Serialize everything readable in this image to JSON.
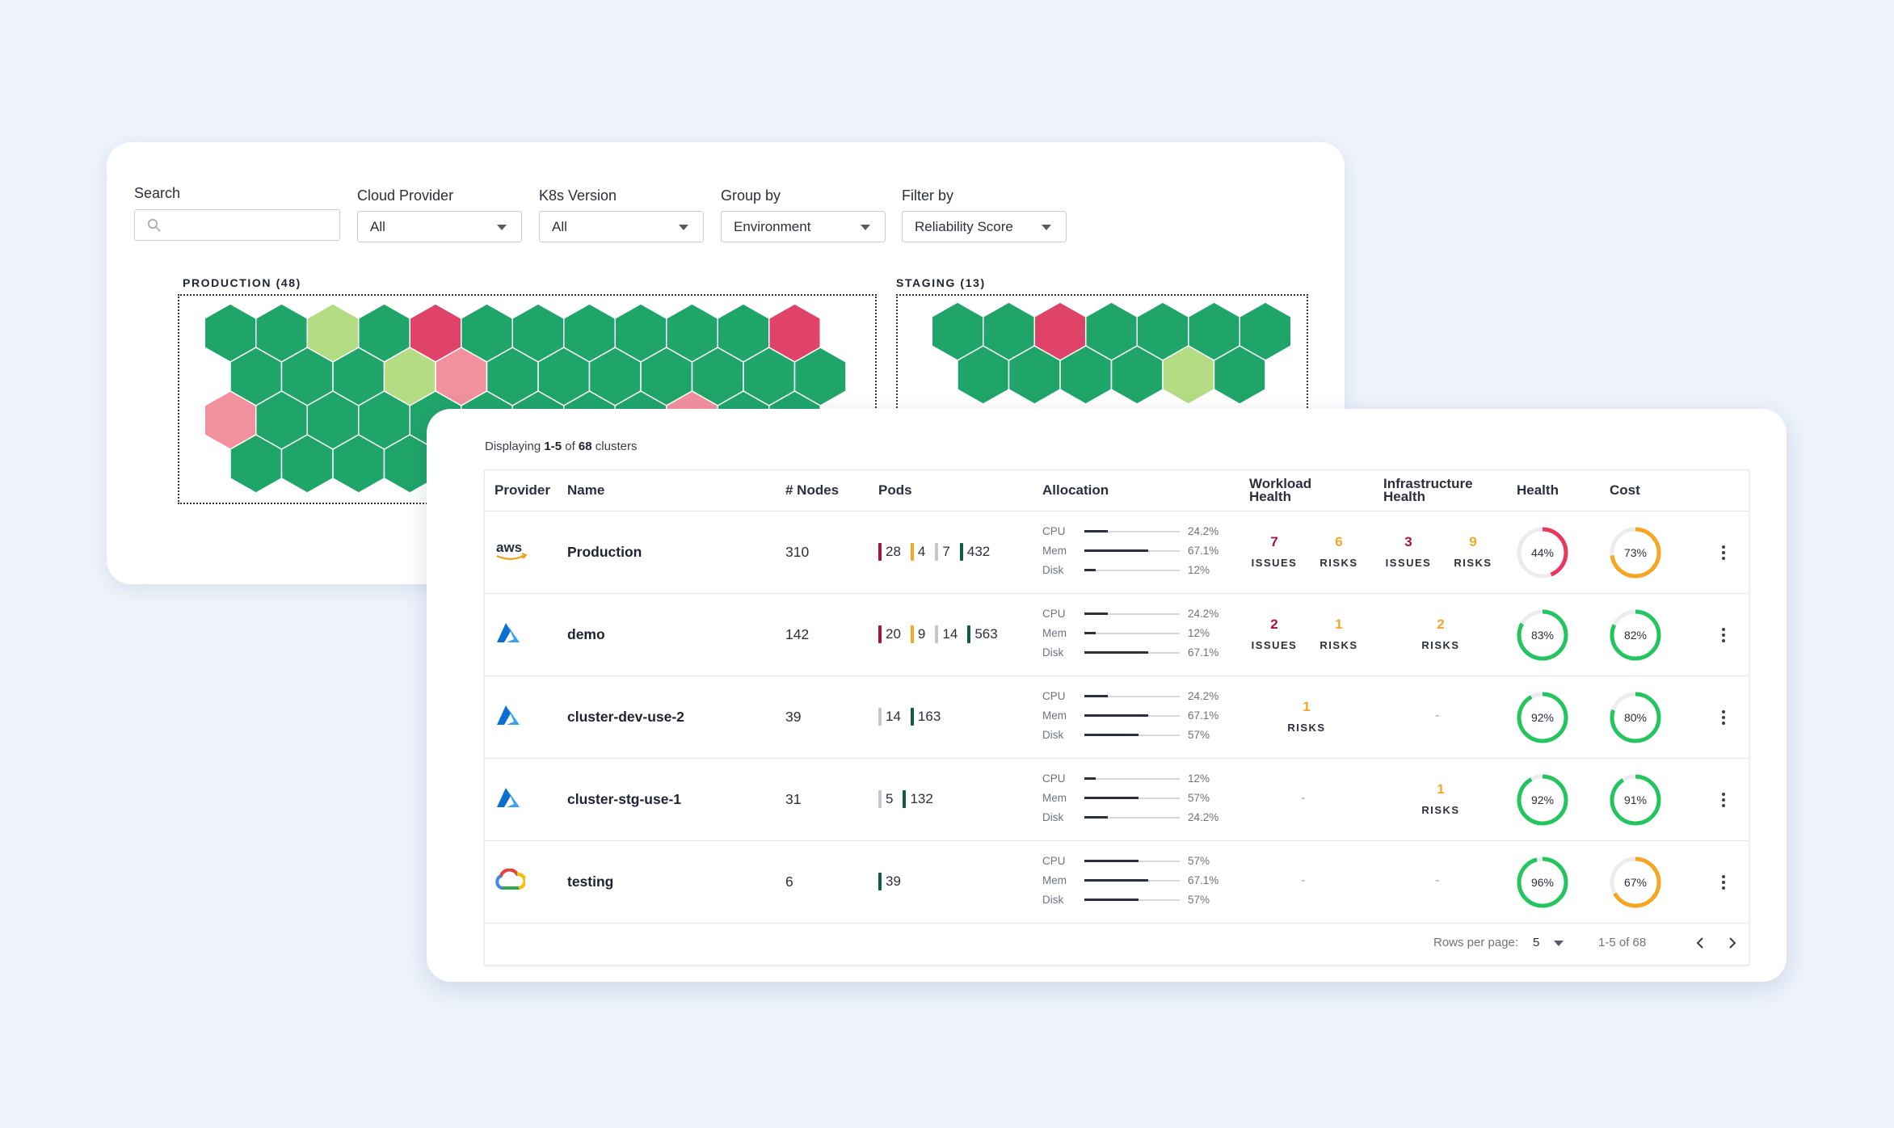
{
  "filters": {
    "search_label": "Search",
    "search_placeholder": "",
    "cloud_provider": {
      "label": "Cloud Provider",
      "value": "All"
    },
    "k8s_version": {
      "label": "K8s Version",
      "value": "All"
    },
    "group_by": {
      "label": "Group by",
      "value": "Environment"
    },
    "filter_by": {
      "label": "Filter by",
      "value": "Reliability Score"
    }
  },
  "groups": [
    {
      "label": "PRODUCTION (48)",
      "rows": [
        [
          "g",
          "g",
          "lg",
          "g",
          "r",
          "g",
          "g",
          "g",
          "g",
          "g",
          "g",
          "r"
        ],
        [
          "g",
          "g",
          "g",
          "lg",
          "p",
          "g",
          "g",
          "g",
          "g",
          "g",
          "g",
          "g"
        ],
        [
          "p",
          "g",
          "g",
          "g",
          "g",
          "g",
          "g",
          "g",
          "g",
          "p",
          "g",
          "g"
        ],
        [
          "g",
          "g",
          "g",
          "g",
          "g",
          "g",
          "g",
          "g",
          "g",
          "g",
          "g",
          "g"
        ]
      ]
    },
    {
      "label": "STAGING (13)",
      "rows": [
        [
          "g",
          "g",
          "r",
          "g",
          "g",
          "g",
          "g"
        ],
        [
          "g",
          "g",
          "g",
          "g",
          "lg",
          "g"
        ]
      ]
    }
  ],
  "colors": {
    "g": "#1fa56a",
    "lg": "#b4dc82",
    "r": "#e0436a",
    "p": "#f2909e",
    "critical": "#a8123e",
    "warning": "#f5a623",
    "neutral": "#c4c7cf",
    "ok": "#0e5c45",
    "good": "#22c55e",
    "bad": "#e8385e"
  },
  "table": {
    "displaying_prefix": "Displaying",
    "range": "1-5",
    "of": "of",
    "total": "68",
    "suffix": "clusters",
    "headers": {
      "provider": "Provider",
      "name": "Name",
      "nodes": "# Nodes",
      "pods": "Pods",
      "allocation": "Allocation",
      "workload_health": "Workload Health",
      "infra_health": "Infrastructure Health",
      "health": "Health",
      "cost": "Cost"
    },
    "issues_label": "ISSUES",
    "risks_label": "RISKS",
    "dash": "-",
    "rows": [
      {
        "provider": "aws",
        "provider_icon": "aws-logo-icon",
        "name": "Production",
        "nodes": "310",
        "pods": [
          {
            "v": "28",
            "c": "critical"
          },
          {
            "v": "4",
            "c": "warning"
          },
          {
            "v": "7",
            "c": "neutral"
          },
          {
            "v": "432",
            "c": "ok"
          }
        ],
        "alloc": [
          {
            "k": "CPU",
            "v": "24.2%",
            "f": 0.242
          },
          {
            "k": "Mem",
            "v": "67.1%",
            "f": 0.671
          },
          {
            "k": "Disk",
            "v": "12%",
            "f": 0.12
          }
        ],
        "workload": {
          "issues": "7",
          "risks": "6"
        },
        "infra": {
          "issues": "3",
          "risks": "9"
        },
        "health": {
          "label": "44%",
          "f": 0.44,
          "c": "bad"
        },
        "cost": {
          "label": "73%",
          "f": 0.73,
          "c": "warning"
        }
      },
      {
        "provider": "azure",
        "provider_icon": "azure-logo-icon",
        "name": "demo",
        "nodes": "142",
        "pods": [
          {
            "v": "20",
            "c": "critical"
          },
          {
            "v": "9",
            "c": "warning"
          },
          {
            "v": "14",
            "c": "neutral"
          },
          {
            "v": "563",
            "c": "ok"
          }
        ],
        "alloc": [
          {
            "k": "CPU",
            "v": "24.2%",
            "f": 0.242
          },
          {
            "k": "Mem",
            "v": "12%",
            "f": 0.12
          },
          {
            "k": "Disk",
            "v": "67.1%",
            "f": 0.671
          }
        ],
        "workload": {
          "issues": "2",
          "risks": "1"
        },
        "infra": {
          "issues": null,
          "risks": "2"
        },
        "health": {
          "label": "83%",
          "f": 0.83,
          "c": "good"
        },
        "cost": {
          "label": "82%",
          "f": 0.82,
          "c": "good"
        }
      },
      {
        "provider": "azure",
        "provider_icon": "azure-logo-icon",
        "name": "cluster-dev-use-2",
        "nodes": "39",
        "pods": [
          {
            "v": "14",
            "c": "neutral"
          },
          {
            "v": "163",
            "c": "ok"
          }
        ],
        "alloc": [
          {
            "k": "CPU",
            "v": "24.2%",
            "f": 0.242
          },
          {
            "k": "Mem",
            "v": "67.1%",
            "f": 0.671
          },
          {
            "k": "Disk",
            "v": "57%",
            "f": 0.57
          }
        ],
        "workload": {
          "issues": null,
          "risks": "1"
        },
        "infra": null,
        "health": {
          "label": "92%",
          "f": 0.92,
          "c": "good"
        },
        "cost": {
          "label": "80%",
          "f": 0.8,
          "c": "good"
        }
      },
      {
        "provider": "azure",
        "provider_icon": "azure-logo-icon",
        "name": "cluster-stg-use-1",
        "nodes": "31",
        "pods": [
          {
            "v": "5",
            "c": "neutral"
          },
          {
            "v": "132",
            "c": "ok"
          }
        ],
        "alloc": [
          {
            "k": "CPU",
            "v": "12%",
            "f": 0.12
          },
          {
            "k": "Mem",
            "v": "57%",
            "f": 0.57
          },
          {
            "k": "Disk",
            "v": "24.2%",
            "f": 0.242
          }
        ],
        "workload": null,
        "infra": {
          "issues": null,
          "risks": "1"
        },
        "health": {
          "label": "92%",
          "f": 0.92,
          "c": "good"
        },
        "cost": {
          "label": "91%",
          "f": 0.91,
          "c": "good"
        }
      },
      {
        "provider": "gcp",
        "provider_icon": "google-cloud-logo-icon",
        "name": "testing",
        "nodes": "6",
        "pods": [
          {
            "v": "39",
            "c": "ok"
          }
        ],
        "alloc": [
          {
            "k": "CPU",
            "v": "57%",
            "f": 0.57
          },
          {
            "k": "Mem",
            "v": "67.1%",
            "f": 0.671
          },
          {
            "k": "Disk",
            "v": "57%",
            "f": 0.57
          }
        ],
        "workload": null,
        "infra": null,
        "health": {
          "label": "96%",
          "f": 0.96,
          "c": "good"
        },
        "cost": {
          "label": "67%",
          "f": 0.67,
          "c": "warning"
        }
      }
    ],
    "footer": {
      "rows_per_page_label": "Rows per page:",
      "rows_per_page": "5",
      "range_text": "1-5 of 68"
    }
  }
}
